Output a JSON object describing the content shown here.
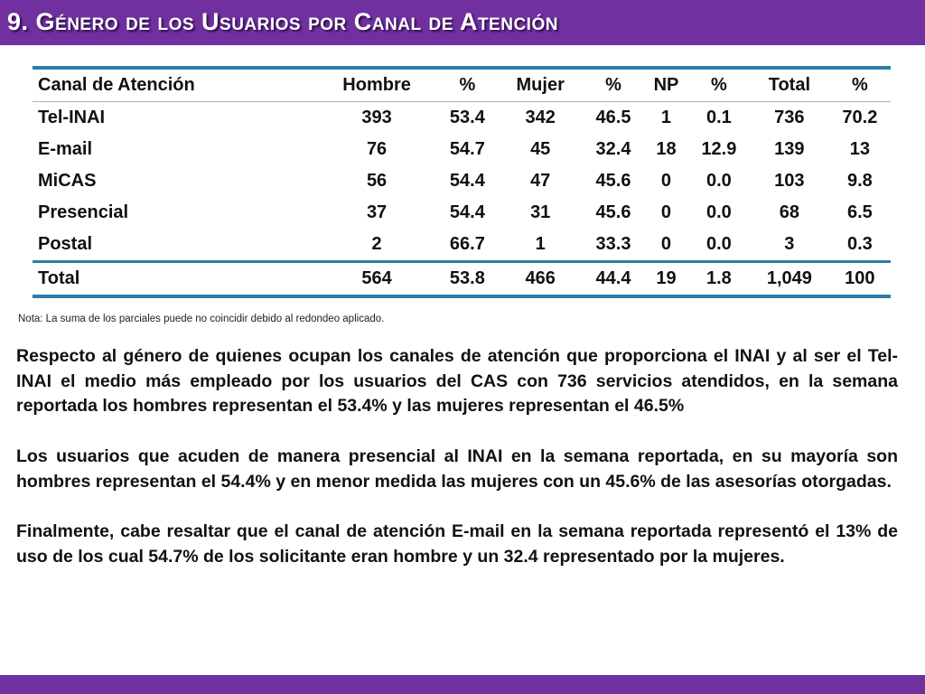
{
  "title": "9. Género de los Usuarios por Canal de Atención",
  "table": {
    "headers": [
      "Canal de Atención",
      "Hombre",
      "%",
      "Mujer",
      "%",
      "NP",
      "%",
      "Total",
      "%"
    ],
    "rows": [
      [
        "Tel-INAI",
        "393",
        "53.4",
        "342",
        "46.5",
        "1",
        "0.1",
        "736",
        "70.2"
      ],
      [
        "E-mail",
        "76",
        "54.7",
        "45",
        "32.4",
        "18",
        "12.9",
        "139",
        "13"
      ],
      [
        "MiCAS",
        "56",
        "54.4",
        "47",
        "45.6",
        "0",
        "0.0",
        "103",
        "9.8"
      ],
      [
        "Presencial",
        "37",
        "54.4",
        "31",
        "45.6",
        "0",
        "0.0",
        "68",
        "6.5"
      ],
      [
        "Postal",
        "2",
        "66.7",
        "1",
        "33.3",
        "0",
        "0.0",
        "3",
        "0.3"
      ]
    ],
    "total": [
      "Total",
      "564",
      "53.8",
      "466",
      "44.4",
      "19",
      "1.8",
      "1,049",
      "100"
    ]
  },
  "note": "Nota: La suma de los parciales puede no coincidir debido al redondeo aplicado.",
  "paragraphs": [
    "Respecto al género de quienes ocupan los canales de atención que proporciona el INAI y al ser el Tel-INAI el medio más empleado por los usuarios del CAS con 736 servicios atendidos, en la semana reportada los hombres representan el 53.4%  y las mujeres representan el 46.5%",
    "Los usuarios que acuden de manera presencial al INAI en la semana reportada, en su mayoría son hombres representan el 54.4% y en menor medida las mujeres con un 45.6% de las asesorías otorgadas.",
    "Finalmente, cabe resaltar que el canal de atención E-mail en la semana reportada representó el 13% de uso de los cual 54.7% de los solicitante eran hombre y un 32.4 representado por la mujeres."
  ],
  "colors": {
    "accent": "#7030a0",
    "table_rule": "#2e7da8"
  }
}
